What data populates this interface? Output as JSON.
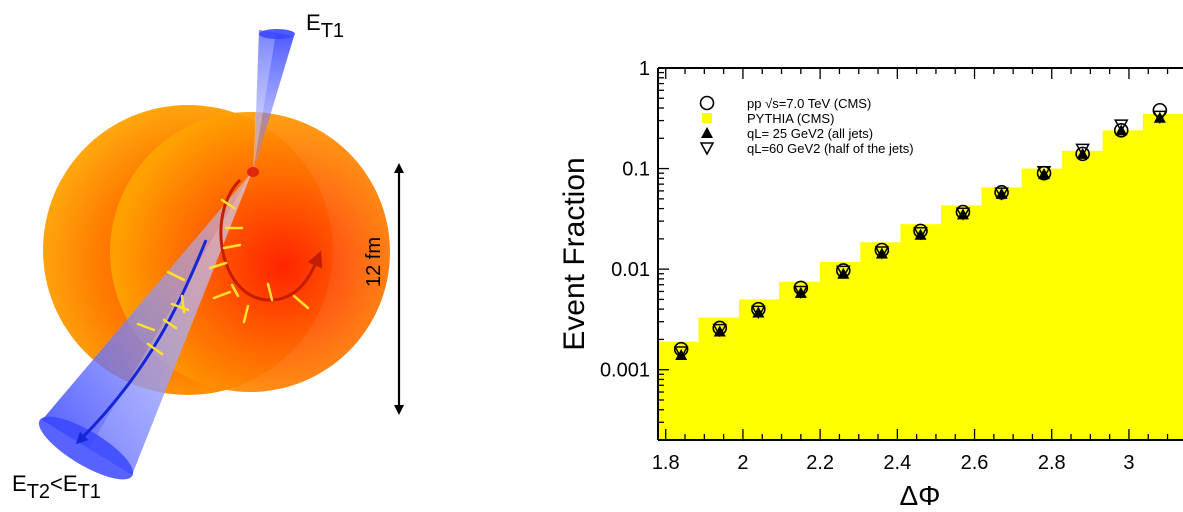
{
  "diagram": {
    "top_jet_label": "E",
    "top_jet_sub": "T1",
    "bottom_jet_label_a": "E",
    "bottom_jet_sub_a": "T2",
    "bottom_jet_lt": "<",
    "bottom_jet_label_b": "E",
    "bottom_jet_sub_b": "T1",
    "scale_label": "12 fm"
  },
  "colors": {
    "bars": "#ffff00",
    "jet": "#4a56ff",
    "medium": "#ff8a00",
    "medium_core": "#ff2a00",
    "recoil": "#ffe12a",
    "blue_path": "#1526d8",
    "red_path": "#c51d00"
  },
  "chart_data": {
    "type": "bar",
    "xlabel": "ΔΦ",
    "ylabel": "Event Fraction",
    "xscale": "linear",
    "yscale": "log",
    "xlim": [
      1.78,
      3.14
    ],
    "ylim": [
      0.0002,
      1
    ],
    "xticks": [
      "1.8",
      "2",
      "2.2",
      "2.4",
      "2.6",
      "2.8",
      "3"
    ],
    "yticks": [
      "0.001",
      "0.01",
      "0.1",
      "1"
    ],
    "legend_position": "top-left",
    "bin_edges": [
      1.781,
      1.885,
      1.99,
      2.094,
      2.199,
      2.304,
      2.408,
      2.513,
      2.618,
      2.722,
      2.827,
      2.932,
      3.036,
      3.141
    ],
    "series": [
      {
        "name": "pp √s=7.0 TeV (CMS)",
        "marker": "open-circle",
        "x": [
          1.84,
          1.94,
          2.04,
          2.15,
          2.26,
          2.36,
          2.46,
          2.57,
          2.67,
          2.78,
          2.88,
          2.98,
          3.08
        ],
        "y": [
          0.0016,
          0.0026,
          0.004,
          0.0065,
          0.0097,
          0.0155,
          0.024,
          0.037,
          0.058,
          0.09,
          0.14,
          0.24,
          0.38
        ]
      },
      {
        "name": "PYTHIA (CMS)",
        "marker": "filled-square",
        "values": [
          0.0019,
          0.0033,
          0.005,
          0.0075,
          0.0118,
          0.0185,
          0.028,
          0.043,
          0.065,
          0.1,
          0.15,
          0.24,
          0.35
        ]
      },
      {
        "name": "qL= 25 GeV2 (all jets)",
        "marker": "filled-triangle-up",
        "x": [
          1.84,
          1.94,
          2.04,
          2.15,
          2.26,
          2.36,
          2.46,
          2.57,
          2.67,
          2.78,
          2.88,
          2.98,
          3.08
        ],
        "y": [
          0.0014,
          0.0024,
          0.0037,
          0.0058,
          0.009,
          0.0143,
          0.022,
          0.035,
          0.056,
          0.088,
          0.14,
          0.24,
          0.32
        ]
      },
      {
        "name": "qL=60 GeV2 (half of the jets)",
        "marker": "open-triangle-down",
        "x": [
          1.84,
          1.94,
          2.04,
          2.15,
          2.26,
          2.36,
          2.46,
          2.57,
          2.67,
          2.78,
          2.88,
          2.98,
          3.08
        ],
        "y": [
          0.0015,
          0.0025,
          0.0038,
          0.006,
          0.0095,
          0.0148,
          0.023,
          0.036,
          0.057,
          0.093,
          0.155,
          0.27,
          0.33
        ]
      }
    ]
  }
}
